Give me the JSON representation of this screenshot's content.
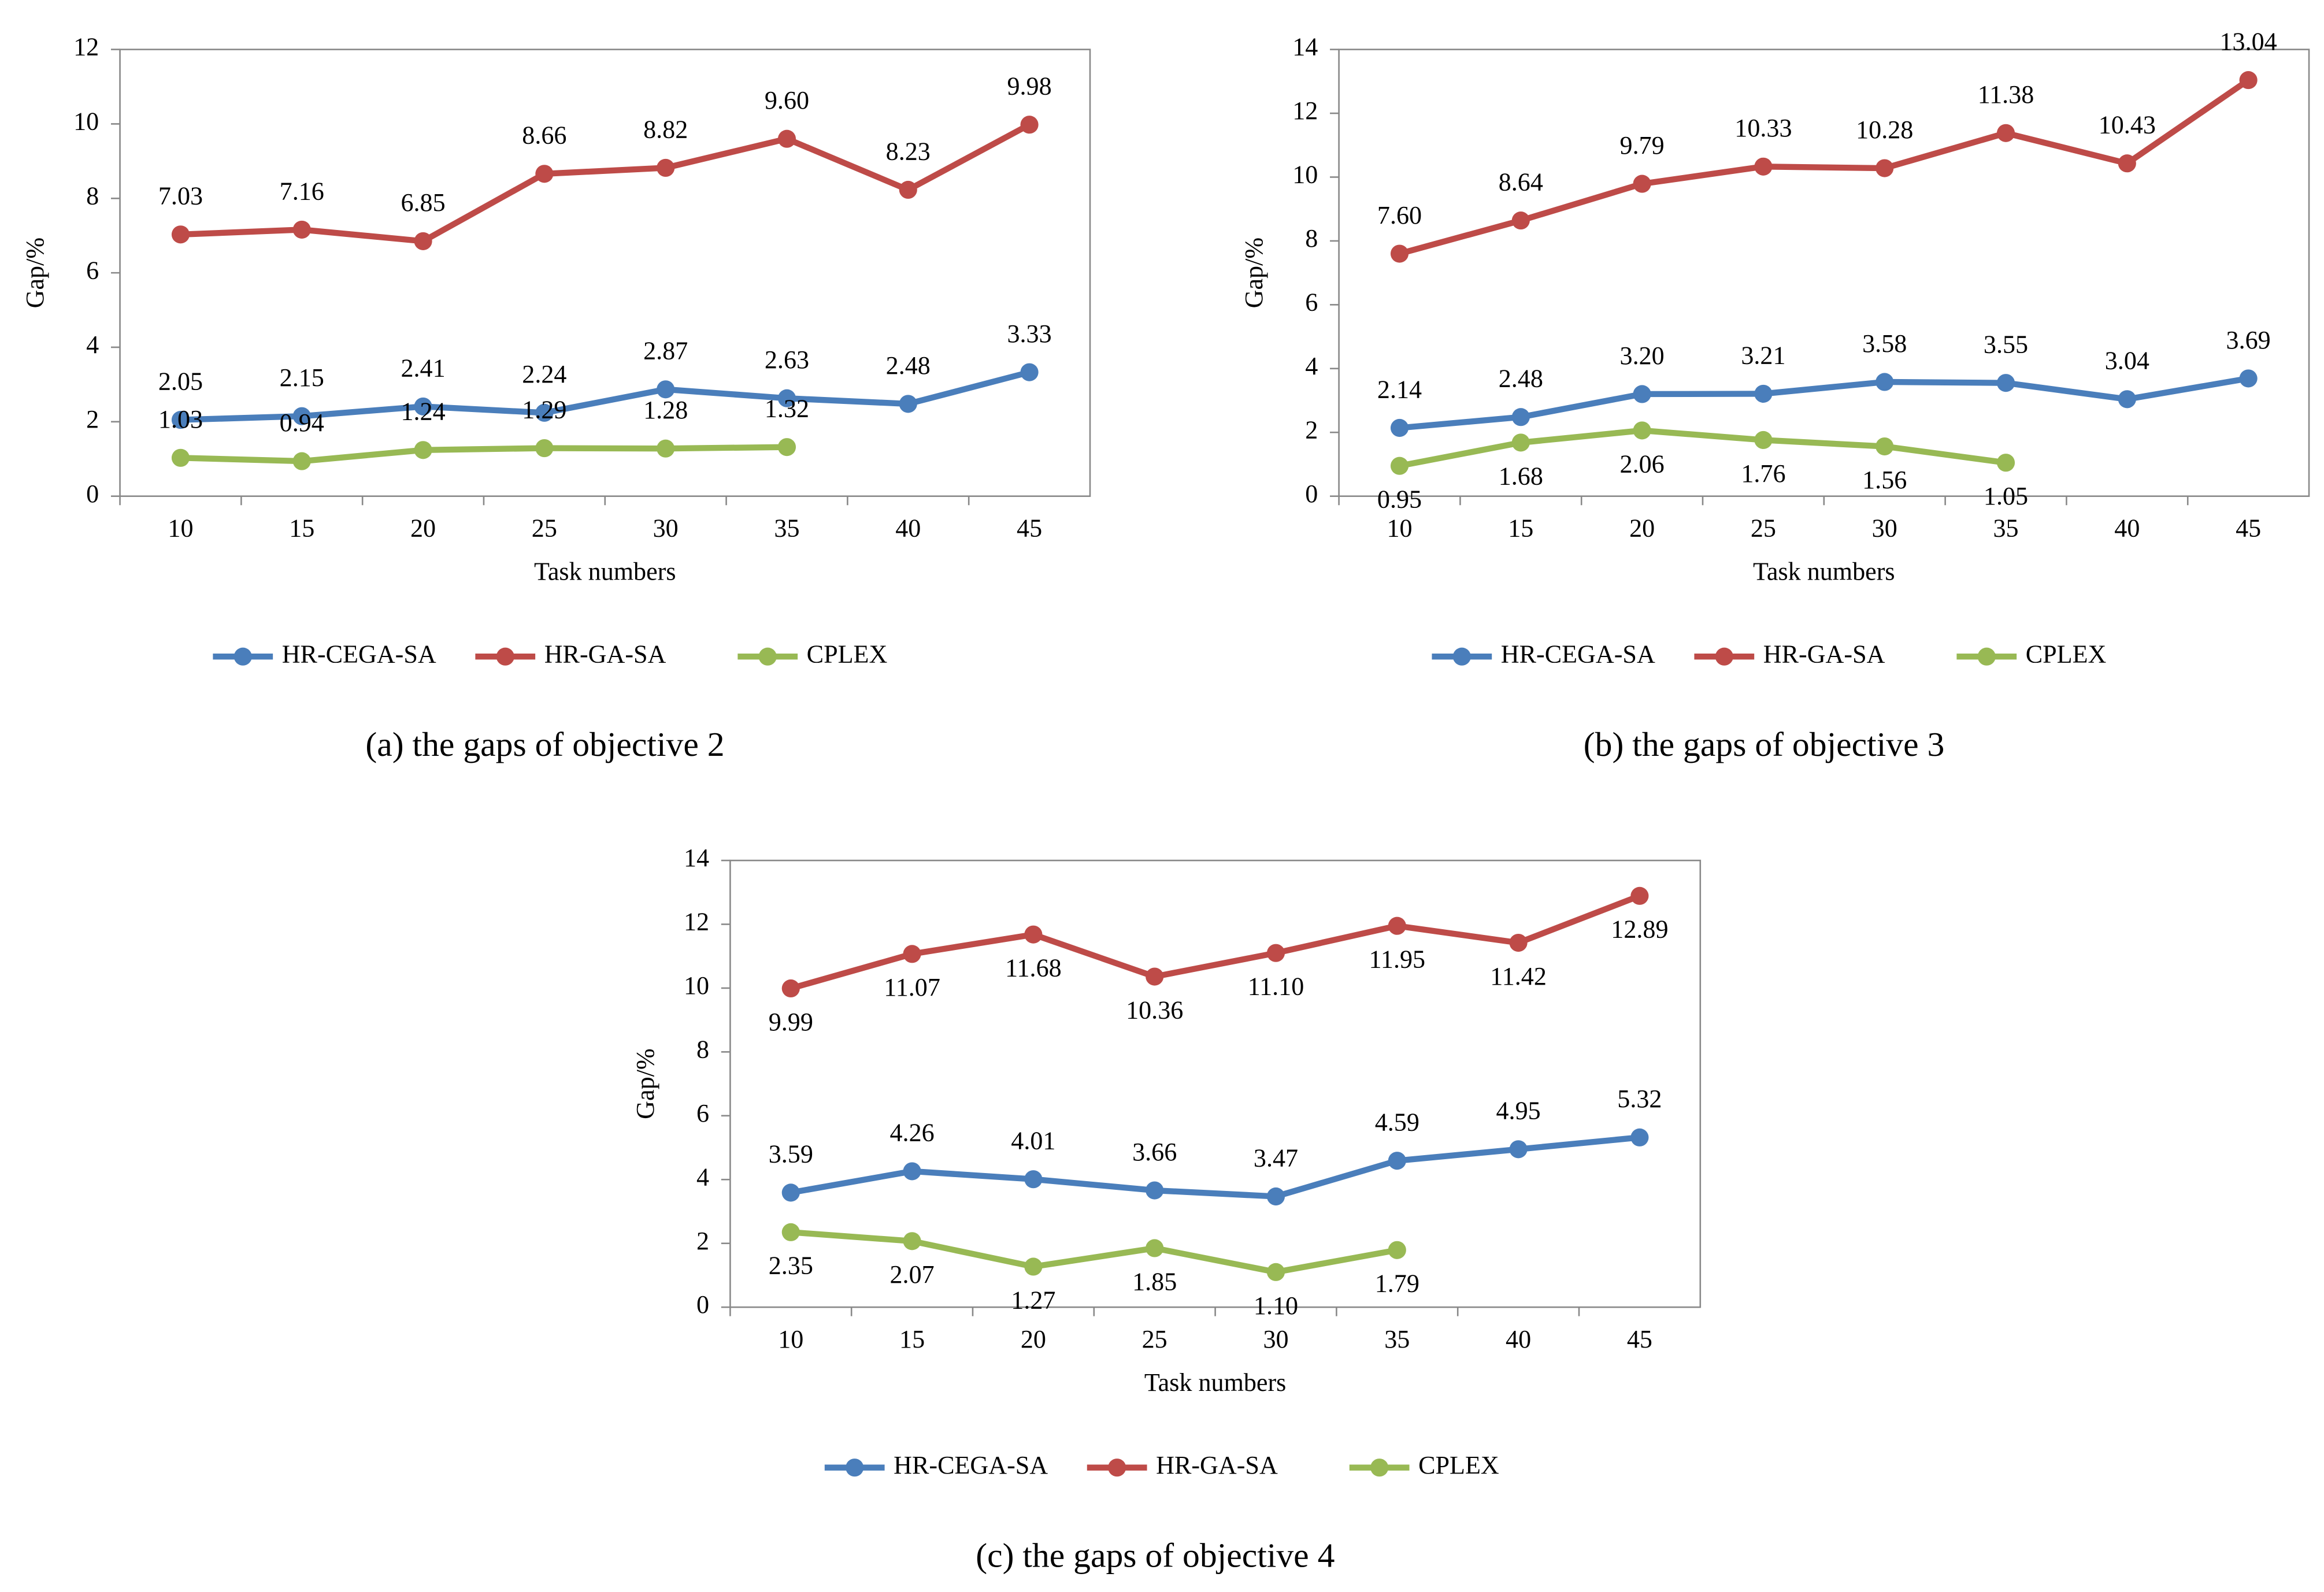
{
  "chart_data": [
    {
      "type": "line",
      "title": "(a)  the gaps of objective 2",
      "xlabel": "Task numbers",
      "ylabel": "Gap/%",
      "categories": [
        "10",
        "15",
        "20",
        "25",
        "30",
        "35",
        "40",
        "45"
      ],
      "ylim": [
        0,
        12
      ],
      "yticks": [
        0,
        2,
        4,
        6,
        8,
        10,
        12
      ],
      "series": [
        {
          "name": "HR-CEGA-SA",
          "color": "#4a7ebb",
          "values": [
            2.05,
            2.15,
            2.41,
            2.24,
            2.87,
            2.63,
            2.48,
            3.33
          ],
          "value_labels": [
            "2.05",
            "2.15",
            "2.41",
            "2.24",
            "2.87",
            "2.63",
            "2.48",
            "3.33"
          ]
        },
        {
          "name": "HR-GA-SA",
          "color": "#be4b48",
          "values": [
            7.03,
            7.16,
            6.85,
            8.66,
            8.82,
            9.6,
            8.23,
            9.98
          ],
          "value_labels": [
            "7.03",
            "7.16",
            "6.85",
            "8.66",
            "8.82",
            "9.60",
            "8.23",
            "9.98"
          ]
        },
        {
          "name": "CPLEX",
          "color": "#98b954",
          "values": [
            1.03,
            0.94,
            1.24,
            1.29,
            1.28,
            1.32,
            null,
            null
          ],
          "value_labels": [
            "1.03",
            "0.94",
            "1.24",
            "1.29",
            "1.28",
            "1.32",
            null,
            null
          ]
        }
      ]
    },
    {
      "type": "line",
      "title": "(b)  the gaps of objective 3",
      "xlabel": "Task numbers",
      "ylabel": "Gap/%",
      "categories": [
        "10",
        "15",
        "20",
        "25",
        "30",
        "35",
        "40",
        "45"
      ],
      "ylim": [
        0,
        14
      ],
      "yticks": [
        0,
        2,
        4,
        6,
        8,
        10,
        12,
        14
      ],
      "series": [
        {
          "name": "HR-CEGA-SA",
          "color": "#4a7ebb",
          "values": [
            2.14,
            2.48,
            3.2,
            3.21,
            3.58,
            3.55,
            3.04,
            3.69
          ],
          "value_labels": [
            "2.14",
            "2.48",
            "3.20",
            "3.21",
            "3.58",
            "3.55",
            "3.04",
            "3.69"
          ]
        },
        {
          "name": "HR-GA-SA",
          "color": "#be4b48",
          "values": [
            7.6,
            8.64,
            9.79,
            10.33,
            10.28,
            11.38,
            10.43,
            13.04
          ],
          "value_labels": [
            "7.60",
            "8.64",
            "9.79",
            "10.33",
            "10.28",
            "11.38",
            "10.43",
            "13.04"
          ]
        },
        {
          "name": "CPLEX",
          "color": "#98b954",
          "values": [
            0.95,
            1.68,
            2.06,
            1.76,
            1.56,
            1.05,
            null,
            null
          ],
          "value_labels": [
            "0.95",
            "1.68",
            "2.06",
            "1.76",
            "1.56",
            "1.05",
            null,
            null
          ]
        }
      ]
    },
    {
      "type": "line",
      "title": "(c)  the gaps of objective 4",
      "xlabel": "Task numbers",
      "ylabel": "Gap/%",
      "categories": [
        "10",
        "15",
        "20",
        "25",
        "30",
        "35",
        "40",
        "45"
      ],
      "ylim": [
        0,
        14
      ],
      "yticks": [
        0,
        2,
        4,
        6,
        8,
        10,
        12,
        14
      ],
      "series": [
        {
          "name": "HR-CEGA-SA",
          "color": "#4a7ebb",
          "values": [
            3.59,
            4.26,
            4.01,
            3.66,
            3.47,
            4.59,
            4.95,
            5.32
          ],
          "value_labels": [
            "3.59",
            "4.26",
            "4.01",
            "3.66",
            "3.47",
            "4.59",
            "4.95",
            "5.32"
          ]
        },
        {
          "name": "HR-GA-SA",
          "color": "#be4b48",
          "values": [
            9.99,
            11.07,
            11.68,
            10.36,
            11.1,
            11.95,
            11.42,
            12.89
          ],
          "value_labels": [
            "9.99",
            "11.07",
            "11.68",
            "10.36",
            "11.10",
            "11.95",
            "11.42",
            "12.89"
          ]
        },
        {
          "name": "CPLEX",
          "color": "#98b954",
          "values": [
            2.35,
            2.07,
            1.27,
            1.85,
            1.1,
            1.79,
            null,
            null
          ],
          "value_labels": [
            "2.35",
            "2.07",
            "1.27",
            "1.85",
            "1.10",
            "1.79",
            null,
            null
          ]
        }
      ]
    }
  ]
}
